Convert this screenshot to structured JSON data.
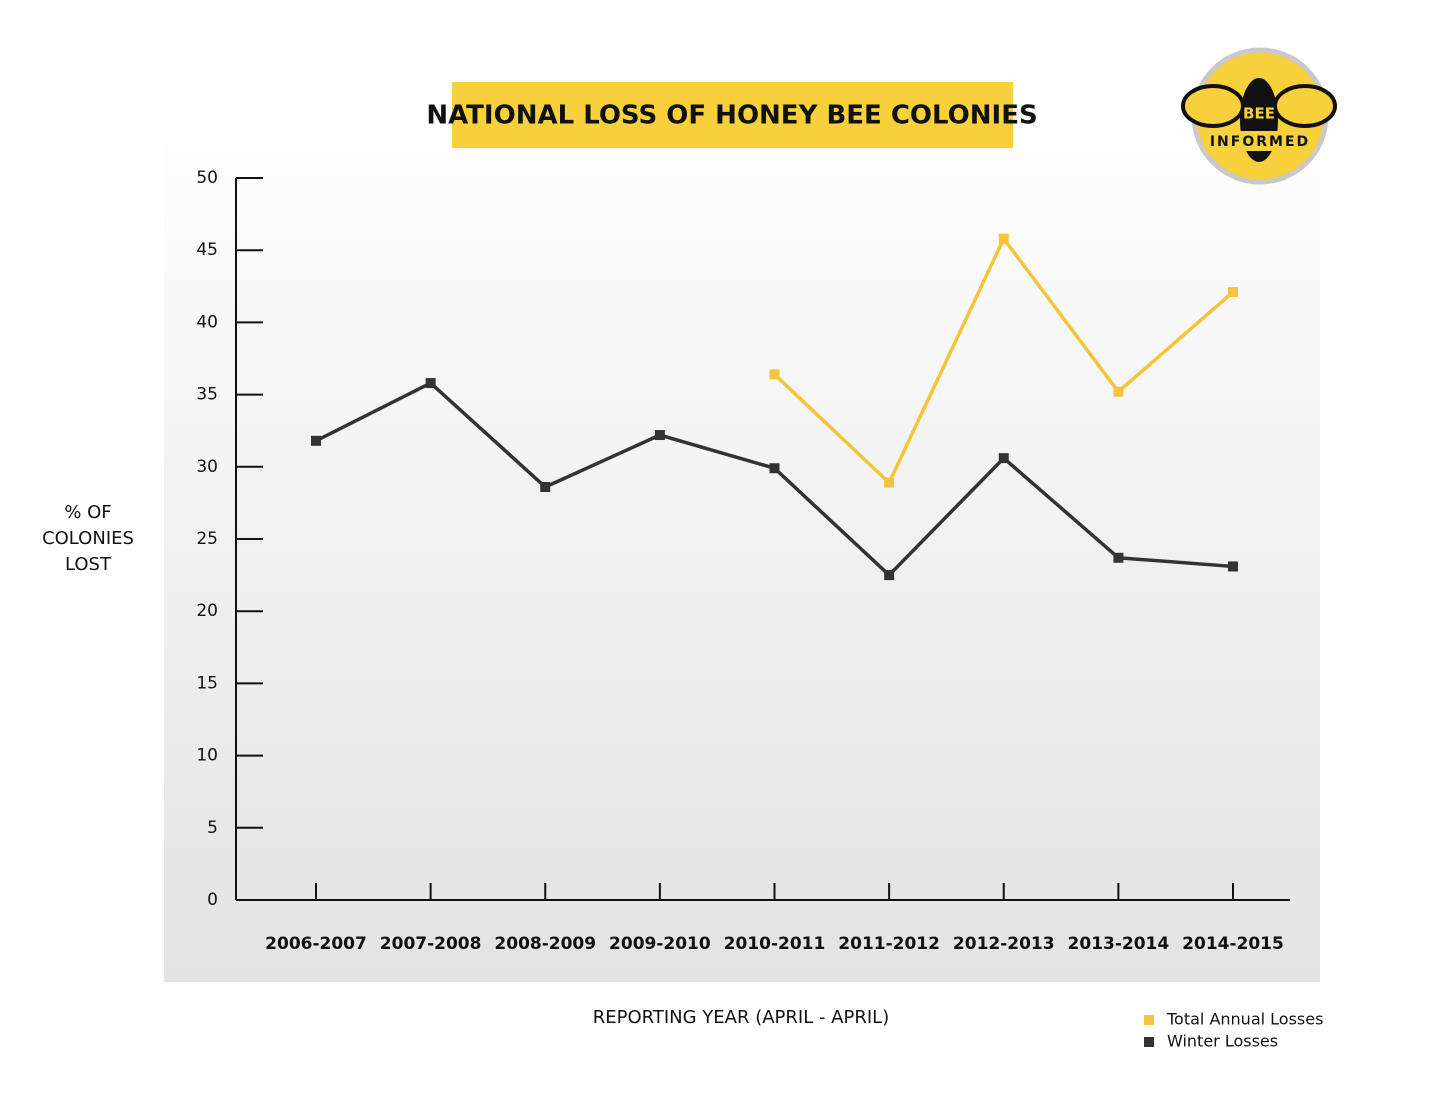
{
  "chart_data": {
    "type": "line",
    "title": "NATIONAL LOSS OF HONEY BEE COLONIES",
    "y_label": "% OF COLONIES LOST",
    "x_label": "REPORTING YEAR (APRIL - APRIL)",
    "categories": [
      "2006-2007",
      "2007-2008",
      "2008-2009",
      "2009-2010",
      "2010-2011",
      "2011-2012",
      "2012-2013",
      "2013-2014",
      "2014-2015"
    ],
    "series": [
      {
        "name": "Total Annual Losses",
        "color": "#f6c43a",
        "values": [
          null,
          null,
          null,
          null,
          36.4,
          28.9,
          45.8,
          35.2,
          42.1
        ]
      },
      {
        "name": "Winter Losses",
        "color": "#333333",
        "values": [
          31.8,
          35.8,
          28.6,
          32.2,
          29.9,
          22.5,
          30.6,
          23.7,
          23.1
        ]
      }
    ],
    "ylim": [
      0,
      50
    ],
    "yticks": [
      0,
      5,
      10,
      15,
      20,
      25,
      30,
      35,
      40,
      45,
      50
    ],
    "legend": "bottom-right"
  },
  "logo": {
    "top": "BEE",
    "bottom": "INFORMED"
  }
}
